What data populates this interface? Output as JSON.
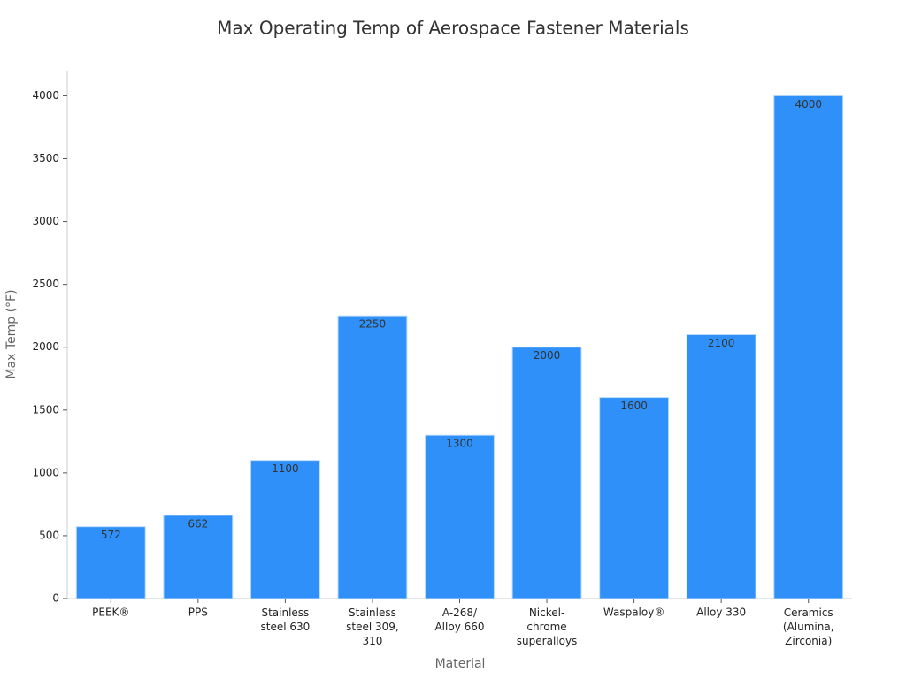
{
  "chart_data": {
    "type": "bar",
    "title": "Max Operating Temp of Aerospace Fastener Materials",
    "x_label": "Material",
    "y_label": "Max Temp (°F)",
    "categories": [
      "PEEK®",
      "PPS",
      "Stainless\nsteel 630",
      "Stainless\nsteel 309,\n310",
      "A-268/\nAlloy 660",
      "Nickel-\nchrome\nsuperalloys",
      "Waspaloy®",
      "Alloy 330",
      "Ceramics\n(Alumina,\nZirconia)"
    ],
    "values": [
      572,
      662,
      1100,
      2250,
      1300,
      2000,
      1600,
      2100,
      4000
    ],
    "color": "#2e90f8",
    "ylim": [
      0,
      4200
    ],
    "yticks": [
      0,
      500,
      1000,
      1500,
      2000,
      2500,
      3000,
      3500,
      4000
    ],
    "grid": false
  }
}
